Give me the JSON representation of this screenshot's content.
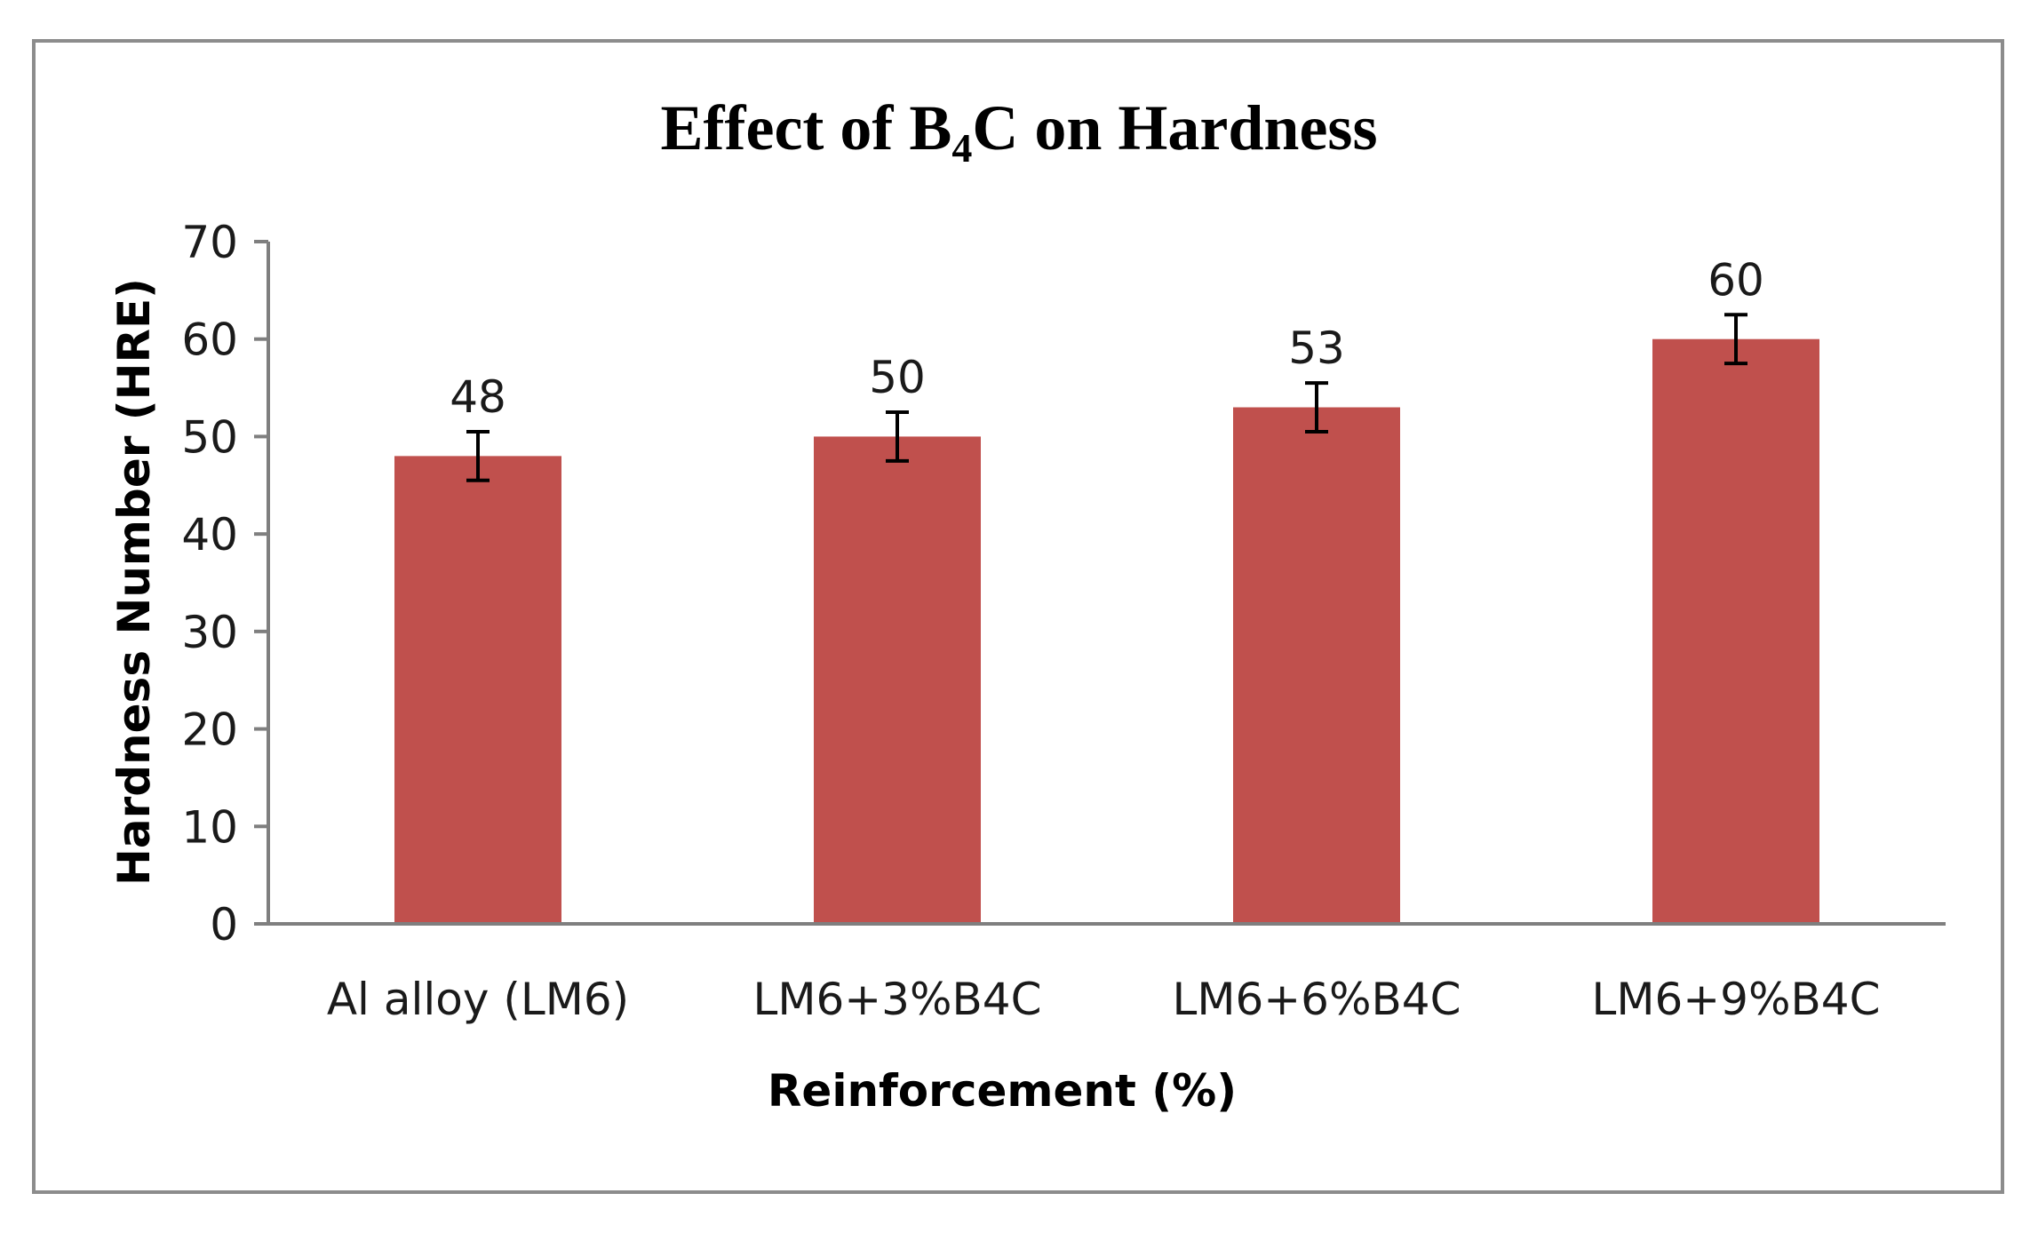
{
  "chart_data": {
    "type": "bar",
    "title": "Effect of B4C on Hardness",
    "title_parts": {
      "prefix": "Effect of B",
      "subscript": "4",
      "suffix": "C on Hardness"
    },
    "xlabel": "Reinforcement (%)",
    "ylabel": "Hardness Number (HRE)",
    "categories": [
      "Al alloy (LM6)",
      "LM6+3%B4C",
      "LM6+6%B4C",
      "LM6+9%B4C"
    ],
    "values": [
      48,
      50,
      53,
      60
    ],
    "data_labels": [
      "48",
      "50",
      "53",
      "60"
    ],
    "error": [
      2.5,
      2.5,
      2.5,
      2.5
    ],
    "ylim": [
      0,
      70
    ],
    "yticks": [
      0,
      10,
      20,
      30,
      40,
      50,
      60,
      70
    ],
    "ytick_labels": [
      "0",
      "10",
      "20",
      "30",
      "40",
      "50",
      "60",
      "70"
    ],
    "grid": false,
    "legend": "none",
    "bar_color": "#c0504d",
    "axis_color": "#7f7f7f",
    "error_bar_color": "#000000"
  }
}
